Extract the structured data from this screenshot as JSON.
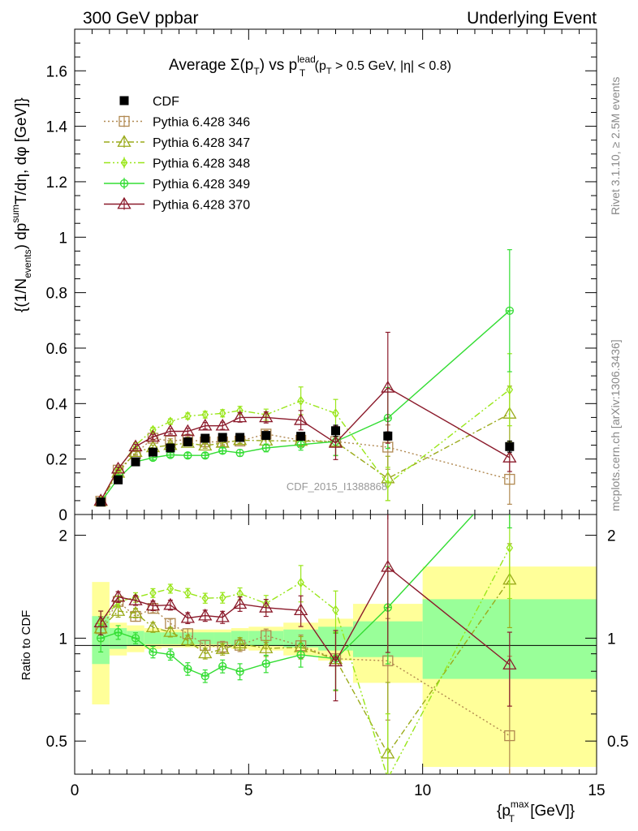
{
  "header": {
    "left": "300 GeV ppbar",
    "right": "Underlying Event"
  },
  "title": {
    "prefix": "Average ",
    "sigma": "Σ(p",
    "sigma_sub": "T",
    "mid": ") vs p",
    "pt_sup": "lead",
    "pt_sub": "T",
    "cond1": " (p",
    "cond_sub": "T",
    "cond2": " > 0.5 GeV, |η| < 0.8)"
  },
  "side_labels": {
    "rivet": "Rivet 3.1.10, ≥ 2.5M events",
    "mcplots": "mcplots.cern.ch [arXiv:1306.3436]"
  },
  "watermark": "CDF_2015_I1388868",
  "ylabel_main": {
    "a": "{(1/N",
    "a_sub": "events",
    "b": ") dp",
    "b_sup": "sum",
    "c": "T",
    "d": "/dη, dφ [GeV]}"
  },
  "ylabel_ratio": "Ratio to CDF",
  "xlabel": {
    "a": "{p",
    "a_sup": "max",
    "a_sub": "T",
    "b": " [GeV]}"
  },
  "chart_data": {
    "type": "line",
    "x": [
      0.75,
      1.25,
      1.75,
      2.25,
      2.75,
      3.25,
      3.75,
      4.25,
      4.75,
      5.5,
      6.5,
      7.5,
      9.0,
      12.5
    ],
    "xlim": [
      0,
      15
    ],
    "ylim": [
      0,
      1.75
    ],
    "ratio_ylim": [
      0.4,
      2.3
    ],
    "xticks": [
      0,
      5,
      10,
      15
    ],
    "yticks_main": [
      0,
      0.2,
      0.4,
      0.6,
      0.8,
      1,
      1.2,
      1.4,
      1.6
    ],
    "yticks_main_labels": [
      "0",
      "0.2",
      "0.4",
      "0.6",
      "0.8",
      "1",
      "1.2",
      "1.4",
      "1.6"
    ],
    "yticks_ratio": [
      0.5,
      1,
      2
    ],
    "yticks_ratio_labels": [
      "0.5",
      "1",
      "2"
    ],
    "data": {
      "name": "CDF",
      "color": "#000000",
      "y": [
        0.045,
        0.125,
        0.19,
        0.225,
        0.24,
        0.262,
        0.275,
        0.278,
        0.278,
        0.285,
        0.282,
        0.302,
        0.283,
        0.245
      ],
      "err": [
        0.003,
        0.004,
        0.005,
        0.006,
        0.007,
        0.008,
        0.008,
        0.008,
        0.009,
        0.01,
        0.012,
        0.02,
        0.015,
        0.02
      ]
    },
    "bands": [
      {
        "x0": 0.5,
        "x1": 1.0,
        "stat": [
          0.84,
          1.16
        ],
        "total": [
          0.64,
          1.46
        ]
      },
      {
        "x0": 1.0,
        "x1": 1.5,
        "stat": [
          0.93,
          1.07
        ],
        "total": [
          0.89,
          1.11
        ]
      },
      {
        "x0": 1.5,
        "x1": 2.0,
        "stat": [
          0.95,
          1.05
        ],
        "total": [
          0.91,
          1.09
        ]
      },
      {
        "x0": 2.0,
        "x1": 2.5,
        "stat": [
          0.96,
          1.04
        ],
        "total": [
          0.93,
          1.07
        ]
      },
      {
        "x0": 2.5,
        "x1": 3.0,
        "stat": [
          0.96,
          1.04
        ],
        "total": [
          0.94,
          1.06
        ]
      },
      {
        "x0": 3.0,
        "x1": 3.5,
        "stat": [
          0.96,
          1.04
        ],
        "total": [
          0.94,
          1.06
        ]
      },
      {
        "x0": 3.5,
        "x1": 4.0,
        "stat": [
          0.96,
          1.04
        ],
        "total": [
          0.94,
          1.06
        ]
      },
      {
        "x0": 4.0,
        "x1": 4.5,
        "stat": [
          0.96,
          1.04
        ],
        "total": [
          0.94,
          1.06
        ]
      },
      {
        "x0": 4.5,
        "x1": 5.0,
        "stat": [
          0.95,
          1.05
        ],
        "total": [
          0.93,
          1.07
        ]
      },
      {
        "x0": 5.0,
        "x1": 6.0,
        "stat": [
          0.95,
          1.05
        ],
        "total": [
          0.92,
          1.08
        ]
      },
      {
        "x0": 6.0,
        "x1": 7.0,
        "stat": [
          0.94,
          1.06
        ],
        "total": [
          0.89,
          1.11
        ]
      },
      {
        "x0": 7.0,
        "x1": 8.0,
        "stat": [
          0.92,
          1.08
        ],
        "total": [
          0.86,
          1.14
        ]
      },
      {
        "x0": 8.0,
        "x1": 10.0,
        "stat": [
          0.88,
          1.12
        ],
        "total": [
          0.74,
          1.26
        ]
      },
      {
        "x0": 10.0,
        "x1": 15.0,
        "stat": [
          0.76,
          1.3
        ],
        "total": [
          0.42,
          1.62
        ]
      }
    ],
    "series": [
      {
        "name": "Pythia 6.428 346",
        "color": "#b08850",
        "dash": "2,3",
        "marker": "square",
        "y": [
          0.048,
          0.16,
          0.22,
          0.275,
          0.265,
          0.27,
          0.262,
          0.262,
          0.265,
          0.29,
          0.268,
          0.263,
          0.243,
          0.127
        ],
        "err": [
          0.004,
          0.006,
          0.007,
          0.008,
          0.008,
          0.009,
          0.009,
          0.01,
          0.011,
          0.013,
          0.02,
          0.05,
          0.08,
          0.09
        ]
      },
      {
        "name": "Pythia 6.428 347",
        "color": "#9aaa1a",
        "dash": "7,3,2,3",
        "marker": "triangle",
        "y": [
          0.048,
          0.15,
          0.225,
          0.242,
          0.25,
          0.258,
          0.248,
          0.258,
          0.268,
          0.266,
          0.265,
          0.262,
          0.13,
          0.363
        ],
        "err": [
          0.004,
          0.006,
          0.007,
          0.008,
          0.008,
          0.009,
          0.009,
          0.01,
          0.011,
          0.014,
          0.02,
          0.05,
          0.08,
          0.1
        ]
      },
      {
        "name": "Pythia 6.428 348",
        "color": "#99e61a",
        "dash": "8,3,2,3,2,3",
        "marker": "diamond",
        "y": [
          0.05,
          0.16,
          0.25,
          0.305,
          0.335,
          0.355,
          0.36,
          0.365,
          0.375,
          0.36,
          0.41,
          0.365,
          0.11,
          0.45
        ],
        "err": [
          0.004,
          0.006,
          0.008,
          0.009,
          0.01,
          0.011,
          0.012,
          0.013,
          0.015,
          0.02,
          0.05,
          0.05,
          0.06,
          0.13
        ]
      },
      {
        "name": "Pythia 6.428 349",
        "color": "#33dd33",
        "dash": "",
        "marker": "circleplus",
        "y": [
          0.045,
          0.13,
          0.19,
          0.205,
          0.215,
          0.213,
          0.213,
          0.23,
          0.222,
          0.24,
          0.252,
          0.263,
          0.348,
          0.735
        ],
        "err": [
          0.004,
          0.006,
          0.007,
          0.008,
          0.008,
          0.009,
          0.009,
          0.01,
          0.012,
          0.014,
          0.02,
          0.05,
          0.11,
          0.22
        ]
      },
      {
        "name": "Pythia 6.428 370",
        "color": "#8b1a2b",
        "dash": "",
        "marker": "triangle",
        "y": [
          0.05,
          0.165,
          0.245,
          0.28,
          0.3,
          0.3,
          0.32,
          0.32,
          0.35,
          0.35,
          0.34,
          0.258,
          0.457,
          0.205
        ],
        "err": [
          0.004,
          0.006,
          0.008,
          0.009,
          0.01,
          0.011,
          0.012,
          0.013,
          0.017,
          0.02,
          0.035,
          0.06,
          0.2,
          0.05
        ]
      }
    ]
  }
}
